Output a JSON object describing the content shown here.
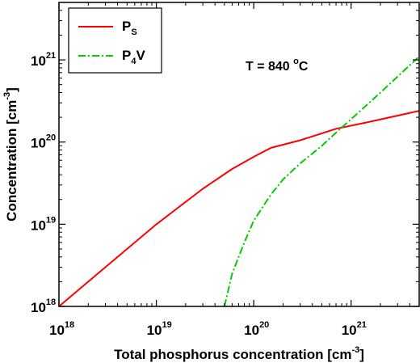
{
  "chart_data": {
    "type": "line",
    "xlabel_main": "Total phosphorus concentration [cm",
    "xlabel_exp": "-3",
    "xlabel_end": "]",
    "ylabel_main": "Concentration [cm",
    "ylabel_exp": "-3",
    "ylabel_end": "]",
    "x_scale": "log",
    "y_scale": "log",
    "xlim": [
      1e+18,
      5e+21
    ],
    "ylim": [
      1e+18,
      5e+21
    ],
    "x_ticks": [
      {
        "base": "10",
        "exp": "18",
        "value": 1e+18
      },
      {
        "base": "10",
        "exp": "19",
        "value": 1e+19
      },
      {
        "base": "10",
        "exp": "20",
        "value": 1e+20
      },
      {
        "base": "10",
        "exp": "21",
        "value": 1e+21
      }
    ],
    "y_ticks": [
      {
        "base": "10",
        "exp": "18",
        "value": 1e+18
      },
      {
        "base": "10",
        "exp": "19",
        "value": 1e+19
      },
      {
        "base": "10",
        "exp": "20",
        "value": 1e+20
      },
      {
        "base": "10",
        "exp": "21",
        "value": 1e+21
      }
    ],
    "annotation": {
      "text_main": "T = 840 ",
      "text_sup": "o",
      "text_end": "C"
    },
    "legend_position": "top-left",
    "series": [
      {
        "name_main": "P",
        "name_sub": "S",
        "name_after": "",
        "color": "#ff0000",
        "style": "solid",
        "x": [
          1e+18,
          3e+18,
          1e+19,
          3e+19,
          6e+19,
          1e+20,
          1.5e+20,
          3e+20,
          7e+20,
          1.5e+21,
          5e+21
        ],
        "y": [
          1e+18,
          3e+18,
          1e+19,
          2.7e+19,
          4.7e+19,
          6.6e+19,
          8.5e+19,
          1.05e+20,
          1.45e+20,
          1.75e+20,
          2.4e+20
        ]
      },
      {
        "name_main": "P",
        "name_sub": "4",
        "name_after": "V",
        "color": "#00cc00",
        "style": "dash-dot",
        "x": [
          5e+19,
          6e+19,
          8e+19,
          1e+20,
          1.5e+20,
          2e+20,
          3e+20,
          5e+20,
          7e+20,
          1e+21,
          2e+21,
          5e+21
        ],
        "y": [
          1e+18,
          2.5e+18,
          6e+18,
          1.1e+19,
          2.3e+19,
          3.5e+19,
          5.5e+19,
          9e+19,
          1.3e+20,
          1.9e+20,
          4e+20,
          1.1e+21
        ]
      }
    ]
  }
}
